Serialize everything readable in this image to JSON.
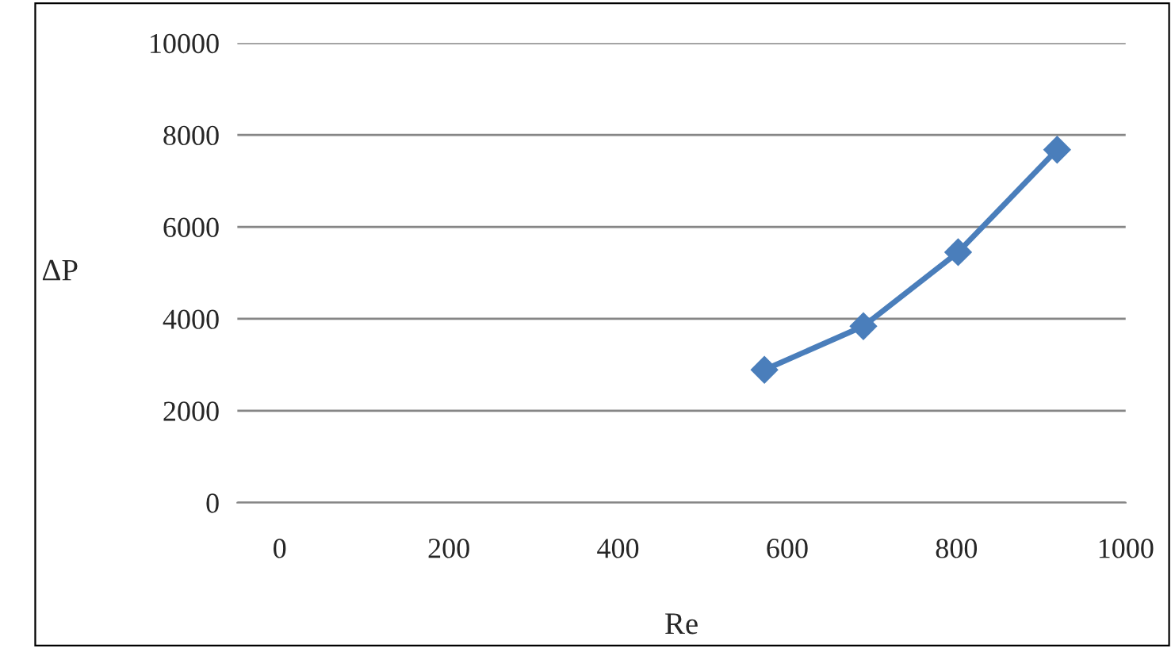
{
  "chart_data": {
    "type": "line",
    "xlabel": "Re",
    "ylabel": "ΔP",
    "x": [
      573,
      690,
      802,
      919
    ],
    "series": [
      {
        "color": "#4a7ebb",
        "values": [
          2890,
          3840,
          5450,
          7680
        ]
      }
    ],
    "xlim": [
      -50,
      1000
    ],
    "xticks": [
      0,
      200,
      400,
      600,
      800,
      1000
    ],
    "ylim": [
      0,
      10000
    ],
    "yticks": [
      0,
      2000,
      4000,
      6000,
      8000,
      10000
    ],
    "grid": "y",
    "marker": "diamond",
    "line_style": "solid",
    "legend": false
  }
}
